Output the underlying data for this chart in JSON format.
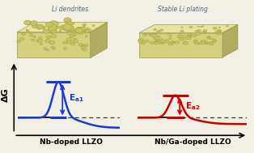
{
  "bg_color": "#f2efe4",
  "left_curve_color": "#1a3ccc",
  "right_curve_color": "#cc0000",
  "left_label": "Nb-doped LLZO",
  "right_label": "Nb/Ga-doped LLZO",
  "left_top_label": "Li dendrites",
  "right_top_label": "Stable Li plating",
  "ylabel": "ΔG",
  "block_face_color": "#d4d080",
  "block_edge_color": "#8a8a40",
  "block_top_color": "#e8e4a0",
  "block_side_color": "#b0ac60",
  "grain_color": "#c8c464",
  "grain_edge_color": "#909030",
  "dendrite_color": "#888830",
  "text_color_top": "#4a6a80"
}
